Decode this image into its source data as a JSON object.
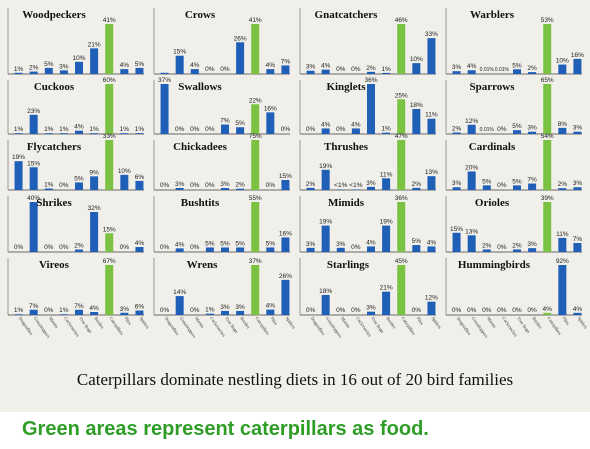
{
  "title": "Caterpillars dominate nestling diets in 16 out of 20 bird families",
  "caption": "Green areas represent caterpillars as food.",
  "colors": {
    "other": "#1f5fb8",
    "caterpillars": "#7cc242",
    "background": "#f1efe9"
  },
  "chart_data": {
    "type": "bar",
    "categories": [
      "Dragonflies",
      "Grasshoppers",
      "Mantis",
      "Cockroaches",
      "True Bugs",
      "Beetles",
      "Caterpillars",
      "Flies",
      "Spiders"
    ],
    "highlight_category": "Caterpillars",
    "x_labels_shown_in": [
      "Vireos",
      "Wrens",
      "Starlings",
      "Hummingbirds"
    ],
    "panels": [
      {
        "name": "Woodpeckers",
        "values": [
          1,
          2,
          5,
          3,
          10,
          21,
          41,
          4,
          5
        ],
        "labels": [
          "1%",
          "2%",
          "5%",
          "3%",
          "10%",
          "21%",
          "41%",
          "4%",
          "5%"
        ]
      },
      {
        "name": "Crows",
        "values": [
          1,
          15,
          4,
          0,
          0,
          26,
          41,
          4,
          7
        ],
        "labels": [
          "",
          "15%",
          "4%",
          "0%",
          "0%",
          "26%",
          "41%",
          "4%",
          "7%"
        ]
      },
      {
        "name": "Gnatcatchers",
        "values": [
          3,
          4,
          0,
          0,
          2,
          1,
          46,
          10,
          33
        ],
        "labels": [
          "3%",
          "4%",
          "0%",
          "0%",
          "2%",
          "1%",
          "46%",
          "10%",
          "33%"
        ]
      },
      {
        "name": "Warblers",
        "values": [
          3,
          4,
          0.01,
          0.01,
          5,
          2,
          53,
          10,
          16
        ],
        "labels": [
          "3%",
          "4%",
          "0.01%",
          "0.01%",
          "5%",
          "2%",
          "53%",
          "10%",
          "16%"
        ]
      },
      {
        "name": "Cuckoos",
        "values": [
          1,
          23,
          1,
          1,
          4,
          1,
          60,
          1,
          1
        ],
        "labels": [
          "1%",
          "23%",
          "1%",
          "1%",
          "4%",
          "1%",
          "60%",
          "1%",
          "1%"
        ]
      },
      {
        "name": "Swallows",
        "values": [
          37,
          0,
          0,
          0,
          7,
          5,
          22,
          16,
          0
        ],
        "labels": [
          "37%",
          "0%",
          "0%",
          "0%",
          "7%",
          "5%",
          "22%",
          "16%",
          "0%"
        ]
      },
      {
        "name": "Kinglets",
        "values": [
          0,
          4,
          0,
          4,
          36,
          1,
          25,
          18,
          11
        ],
        "labels": [
          "0%",
          "4%",
          "0%",
          "4%",
          "36%",
          "1%",
          "25%",
          "18%",
          "11%"
        ]
      },
      {
        "name": "Sparrows",
        "values": [
          2,
          12,
          0.01,
          0,
          5,
          3,
          65,
          8,
          3
        ],
        "labels": [
          "2%",
          "12%",
          "0.01%",
          "0%",
          "5%",
          "3%",
          "65%",
          "8%",
          "3%"
        ]
      },
      {
        "name": "Flycatchers",
        "values": [
          19,
          15,
          1,
          0,
          5,
          9,
          33,
          10,
          6
        ],
        "labels": [
          "19%",
          "15%",
          "1%",
          "0%",
          "5%",
          "9%",
          "33%",
          "10%",
          "6%"
        ]
      },
      {
        "name": "Chickadees",
        "values": [
          0,
          3,
          0,
          0,
          3,
          2,
          75,
          0,
          15
        ],
        "labels": [
          "0%",
          "3%",
          "0%",
          "0%",
          "3%",
          "2%",
          "75%",
          "0%",
          "15%"
        ]
      },
      {
        "name": "Thrushes",
        "values": [
          2,
          19,
          0.5,
          0.5,
          3,
          11,
          47,
          2,
          13
        ],
        "labels": [
          "2%",
          "19%",
          "<1%",
          "<1%",
          "3%",
          "11%",
          "47%",
          "2%",
          "13%"
        ]
      },
      {
        "name": "Cardinals",
        "values": [
          3,
          20,
          5,
          0,
          5,
          7,
          54,
          2,
          3
        ],
        "labels": [
          "3%",
          "20%",
          "5%",
          "0%",
          "5%",
          "7%",
          "54%",
          "2%",
          "3%"
        ]
      },
      {
        "name": "Shrikes",
        "values": [
          0,
          40,
          0,
          0,
          2,
          32,
          15,
          0,
          4
        ],
        "labels": [
          "0%",
          "40%",
          "0%",
          "0%",
          "2%",
          "32%",
          "15%",
          "0%",
          "4%"
        ]
      },
      {
        "name": "Bushtits",
        "values": [
          0,
          4,
          0,
          5,
          5,
          5,
          55,
          5,
          16
        ],
        "labels": [
          "0%",
          "4%",
          "0%",
          "5%",
          "5%",
          "5%",
          "55%",
          "5%",
          "16%"
        ]
      },
      {
        "name": "Mimids",
        "values": [
          3,
          19,
          3,
          0,
          4,
          19,
          36,
          5,
          4
        ],
        "labels": [
          "3%",
          "19%",
          "3%",
          "0%",
          "4%",
          "19%",
          "36%",
          "5%",
          "4%"
        ]
      },
      {
        "name": "Orioles",
        "values": [
          15,
          13,
          2,
          0,
          2,
          3,
          39,
          11,
          7
        ],
        "labels": [
          "15%",
          "13%",
          "2%",
          "0%",
          "2%",
          "3%",
          "39%",
          "11%",
          "7%"
        ]
      },
      {
        "name": "Vireos",
        "values": [
          1,
          7,
          0,
          1,
          7,
          4,
          67,
          3,
          6
        ],
        "labels": [
          "1%",
          "7%",
          "0%",
          "1%",
          "7%",
          "4%",
          "67%",
          "3%",
          "6%"
        ]
      },
      {
        "name": "Wrens",
        "values": [
          0,
          14,
          0,
          1,
          3,
          3,
          37,
          4,
          26
        ],
        "labels": [
          "0%",
          "14%",
          "0%",
          "1%",
          "3%",
          "3%",
          "37%",
          "4%",
          "26%"
        ]
      },
      {
        "name": "Starlings",
        "values": [
          0,
          18,
          0,
          0,
          3,
          21,
          45,
          0,
          12
        ],
        "labels": [
          "0%",
          "18%",
          "0%",
          "0%",
          "3%",
          "21%",
          "45%",
          "0%",
          "12%"
        ]
      },
      {
        "name": "Hummingbirds",
        "values": [
          0,
          0,
          0,
          0,
          0,
          0,
          4,
          92,
          4
        ],
        "labels": [
          "0%",
          "0%",
          "0%",
          "0%",
          "0%",
          "0%",
          "4%",
          "92%",
          "4%"
        ]
      }
    ]
  }
}
